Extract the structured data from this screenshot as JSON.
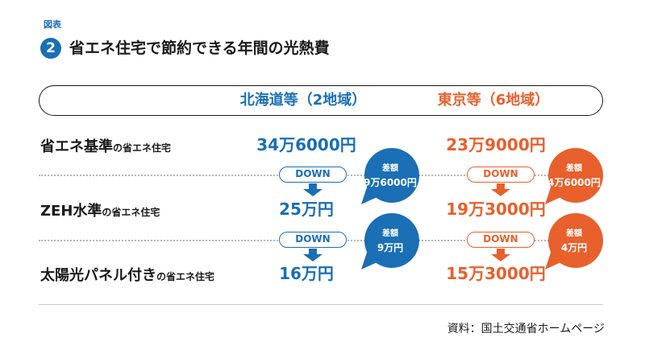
{
  "figure_label": "図表",
  "figure_number": "2",
  "title": "省エネ住宅で節約できる年間の光熱費",
  "columns": [
    "北海道等（2地域）",
    "東京等（6地域）"
  ],
  "rows": [
    {
      "main": "省エネ基準",
      "sub": "の省エネ住宅"
    },
    {
      "main": "ZEH水準",
      "sub": "の省エネ住宅"
    },
    {
      "main": "太陽光パネル付き",
      "sub": "の省エネ住宅"
    }
  ],
  "down_label": "DOWN",
  "bubble_top": "差額",
  "colors": {
    "hokkaido": "#1a6fb5",
    "tokyo": "#e8602c"
  },
  "chart_data": {
    "type": "table",
    "title": "省エネ住宅で節約できる年間の光熱費",
    "columns": [
      "北海道等（2地域）",
      "東京等（6地域）"
    ],
    "rows": [
      "省エネ基準の省エネ住宅",
      "ZEH水準の省エネ住宅",
      "太陽光パネル付きの省エネ住宅"
    ],
    "series": [
      {
        "name": "北海道等（2地域）",
        "values": [
          346000,
          250000,
          160000
        ],
        "labels": [
          "34万6000円",
          "25万円",
          "16万円"
        ],
        "differences": [
          "9万6000円",
          "9万円"
        ]
      },
      {
        "name": "東京等（6地域）",
        "values": [
          239000,
          193000,
          153000
        ],
        "labels": [
          "23万9000円",
          "19万3000円",
          "15万3000円"
        ],
        "differences": [
          "4万6000円",
          "4万円"
        ]
      }
    ]
  },
  "source": "資料：国土交通省ホームページ"
}
